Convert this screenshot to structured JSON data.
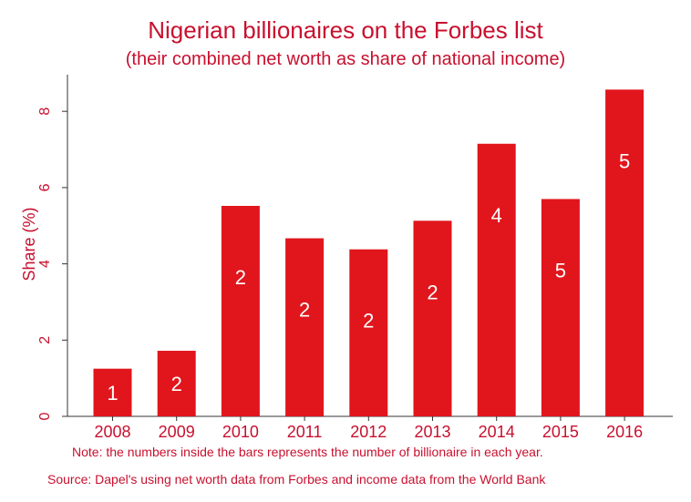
{
  "title": "Nigerian billionaires on the Forbes list",
  "subtitle": "(their combined net worth as share of national income)",
  "note": "Note: the numbers inside the bars represents the number of billionaire in each year.",
  "source": "Source: Dapel's using net worth data from Forbes and income data from the World Bank",
  "colors": {
    "bar": "#e0161c",
    "text": "#c8102e",
    "label": "#ffffff",
    "axis": "#333333"
  },
  "chart_data": {
    "type": "bar",
    "categories": [
      "2008",
      "2009",
      "2010",
      "2011",
      "2012",
      "2013",
      "2014",
      "2015",
      "2016"
    ],
    "values": [
      1.25,
      1.72,
      5.52,
      4.67,
      4.38,
      5.13,
      7.15,
      5.7,
      8.57
    ],
    "bar_labels": [
      "1",
      "2",
      "2",
      "2",
      "2",
      "2",
      "4",
      "5",
      "5"
    ],
    "title": "Nigerian billionaires on the Forbes list",
    "subtitle": "(their combined net worth as share of national income)",
    "xlabel": "",
    "ylabel": "Share (%)",
    "ylim": [
      0,
      9
    ],
    "yticks": [
      0,
      2,
      4,
      6,
      8
    ],
    "grid": false,
    "legend": "none"
  }
}
